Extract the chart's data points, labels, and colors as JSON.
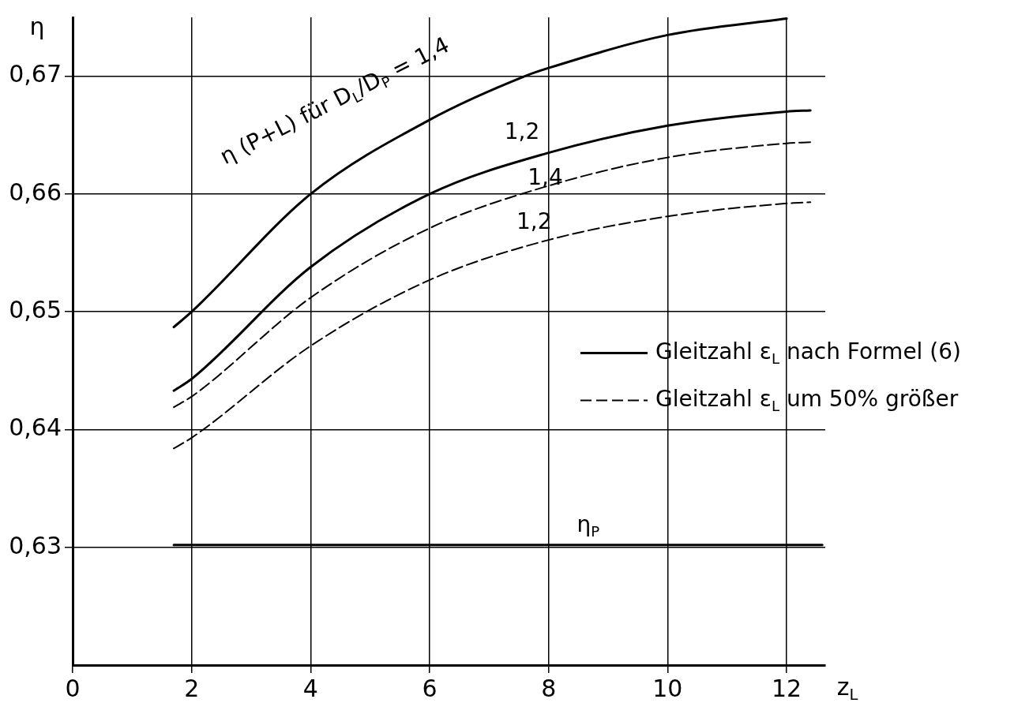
{
  "chart_data": {
    "type": "line",
    "xlabel": "z$_{L}$",
    "ylabel": "η",
    "xlim": [
      0,
      12.65
    ],
    "ylim": [
      0.62,
      0.675
    ],
    "xticks": [
      0,
      2,
      4,
      6,
      8,
      10,
      12
    ],
    "yticks": [
      {
        "value": 0.63,
        "label": "0,63"
      },
      {
        "value": 0.64,
        "label": "0,64"
      },
      {
        "value": 0.65,
        "label": "0,65"
      },
      {
        "value": 0.66,
        "label": "0,66"
      },
      {
        "value": 0.67,
        "label": "0,67"
      }
    ],
    "grid": true,
    "legend": "right",
    "marker": "none",
    "series": [
      {
        "name": "Gleitzahl ε$_{L}$ nach Formel (6)",
        "color": "#000000",
        "line_style": "solid",
        "x": [
          1.7,
          2,
          4,
          6,
          7.6,
          8,
          10,
          12
        ],
        "values": [
          0.6487,
          0.65,
          0.66,
          0.6663,
          0.67,
          0.6707,
          0.6735,
          0.6749
        ]
      },
      {
        "color": "#000000",
        "line_style": "solid",
        "x": [
          1.7,
          2,
          4,
          6,
          8,
          10,
          12,
          12.4
        ],
        "values": [
          0.6433,
          0.6443,
          0.6538,
          0.66,
          0.6635,
          0.6658,
          0.667,
          0.6671
        ]
      },
      {
        "name": "Gleitzahl ε$_{L}$ um 50% größer",
        "color": "#000000",
        "line_style": "dashed",
        "x": [
          1.7,
          2,
          4,
          6,
          8,
          10,
          12,
          12.4
        ],
        "values": [
          0.6419,
          0.6428,
          0.6512,
          0.6571,
          0.6607,
          0.6631,
          0.6643,
          0.6644
        ]
      },
      {
        "color": "#000000",
        "line_style": "dashed",
        "x": [
          1.7,
          2,
          4,
          6,
          8,
          10,
          12,
          12.4
        ],
        "values": [
          0.6384,
          0.6393,
          0.6471,
          0.6527,
          0.6561,
          0.6581,
          0.6592,
          0.6593
        ]
      },
      {
        "color": "#000000",
        "line_style": "solid",
        "x": [
          1.7,
          12.6
        ],
        "values": [
          0.6302,
          0.6302
        ]
      }
    ],
    "annotations": [
      "η (P+L) für D$_{L}$/D$_{P}$ = 1,4",
      "1,2",
      "1,4",
      "1,2",
      "η$_{P}$"
    ]
  }
}
